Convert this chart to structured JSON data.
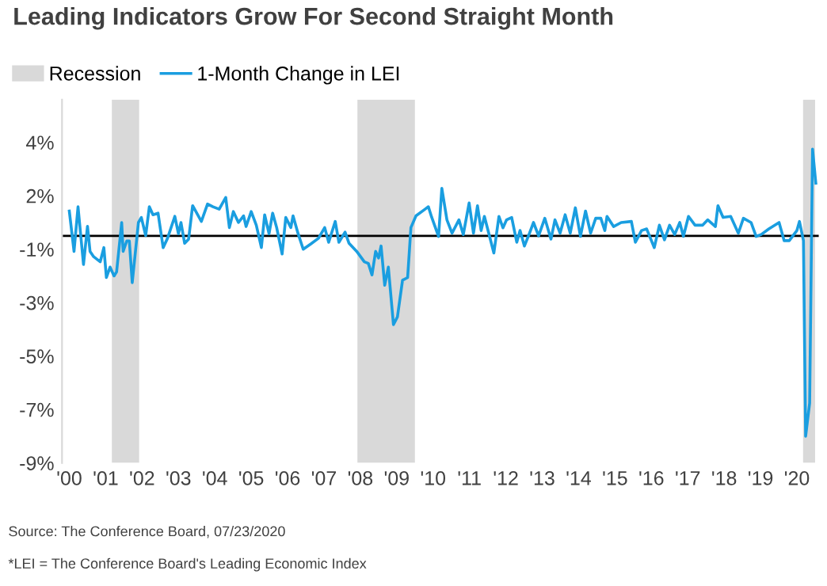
{
  "chart_data": {
    "type": "line",
    "title": "Leading Indicators Grow For Second Straight Month",
    "x": [
      2000.0,
      2000.13,
      2000.24,
      2000.39,
      2000.5,
      2000.57,
      2000.67,
      2000.85,
      2000.95,
      2001.02,
      2001.12,
      2001.23,
      2001.3,
      2001.44,
      2001.48,
      2001.58,
      2001.65,
      2001.73,
      2001.9,
      2001.98,
      2002.1,
      2002.2,
      2002.3,
      2002.44,
      2002.58,
      2002.7,
      2002.9,
      2003.0,
      2003.07,
      2003.17,
      2003.28,
      2003.39,
      2003.63,
      2003.8,
      2003.95,
      2004.12,
      2004.3,
      2004.4,
      2004.51,
      2004.65,
      2004.79,
      2004.86,
      2005.0,
      2005.14,
      2005.28,
      2005.37,
      2005.49,
      2005.59,
      2005.7,
      2005.85,
      2005.95,
      2006.09,
      2006.15,
      2006.29,
      2006.43,
      2006.64,
      2006.85,
      2007.02,
      2007.13,
      2007.31,
      2007.41,
      2007.58,
      2007.69,
      2007.9,
      2008.11,
      2008.22,
      2008.32,
      2008.42,
      2008.5,
      2008.57,
      2008.67,
      2008.77,
      2008.91,
      2009.02,
      2009.16,
      2009.3,
      2009.39,
      2009.53,
      2009.78,
      2009.87,
      2009.96,
      2010.15,
      2010.24,
      2010.38,
      2010.52,
      2010.71,
      2010.83,
      2010.99,
      2011.11,
      2011.22,
      2011.32,
      2011.41,
      2011.53,
      2011.67,
      2011.81,
      2011.92,
      2012.02,
      2012.16,
      2012.3,
      2012.39,
      2012.51,
      2012.65,
      2012.76,
      2012.9,
      2013.07,
      2013.24,
      2013.35,
      2013.49,
      2013.63,
      2013.77,
      2013.91,
      2014.05,
      2014.19,
      2014.33,
      2014.47,
      2014.61,
      2014.72,
      2014.78,
      2014.96,
      2015.17,
      2015.45,
      2015.56,
      2015.73,
      2015.87,
      2016.08,
      2016.22,
      2016.36,
      2016.5,
      2016.64,
      2016.78,
      2016.88,
      2017.02,
      2017.2,
      2017.41,
      2017.55,
      2017.76,
      2017.83,
      2017.97,
      2018.18,
      2018.39,
      2018.53,
      2018.74,
      2018.88,
      2019.02,
      2019.23,
      2019.51,
      2019.65,
      2019.79,
      2020.0,
      2020.07,
      2020.18,
      2020.24,
      2020.35,
      2020.43,
      2020.52
    ],
    "series": [
      {
        "name": "1-Month Change in LEI",
        "color": "#1a9ee0",
        "values": [
          0.93,
          -0.58,
          1.09,
          -1.07,
          0.36,
          -0.58,
          -0.78,
          -0.97,
          -0.44,
          -1.56,
          -1.17,
          -1.5,
          -1.35,
          0.5,
          -0.58,
          -0.19,
          -0.19,
          -1.75,
          0.5,
          0.69,
          0.01,
          1.09,
          0.79,
          0.85,
          -0.44,
          -0.09,
          0.73,
          0.08,
          0.5,
          -0.28,
          -0.12,
          1.13,
          0.54,
          1.19,
          1.09,
          1.0,
          1.44,
          0.31,
          0.91,
          0.5,
          0.75,
          0.35,
          0.91,
          0.4,
          -0.44,
          0.79,
          0.08,
          0.85,
          0.31,
          -0.68,
          0.69,
          0.31,
          0.75,
          0.08,
          -0.5,
          -0.3,
          -0.09,
          0.31,
          -0.24,
          0.54,
          -0.24,
          0.14,
          -0.28,
          -0.58,
          -0.97,
          -1.03,
          -1.46,
          -0.58,
          -0.83,
          -0.38,
          -1.85,
          -1.17,
          -3.32,
          -3.03,
          -1.66,
          -1.56,
          0.31,
          0.75,
          1.0,
          1.09,
          0.7,
          -0.02,
          1.78,
          0.6,
          0.1,
          0.6,
          0.05,
          1.23,
          0.1,
          1.13,
          0.2,
          0.73,
          0.1,
          -0.64,
          0.73,
          0.3,
          0.6,
          0.69,
          -0.24,
          0.2,
          -0.38,
          0.1,
          0.5,
          0.0,
          0.66,
          -0.12,
          0.6,
          0.1,
          0.79,
          0.1,
          1.05,
          -0.02,
          0.93,
          0.1,
          0.66,
          0.66,
          0.2,
          0.73,
          0.35,
          0.5,
          0.54,
          -0.24,
          0.2,
          0.26,
          -0.44,
          0.4,
          -0.15,
          0.4,
          0.05,
          0.5,
          -0.02,
          0.73,
          0.4,
          0.4,
          0.6,
          0.35,
          1.13,
          0.69,
          0.73,
          0.1,
          0.66,
          0.5,
          -0.02,
          0.05,
          0.26,
          0.5,
          -0.18,
          -0.18,
          0.2,
          0.54,
          -0.18,
          -7.5,
          -6.26,
          3.25,
          1.97
        ]
      }
    ],
    "bands": [
      {
        "axis": "x",
        "from": 2001.17,
        "to": 2001.92,
        "label": "Recession",
        "color": "#d9d9d9"
      },
      {
        "axis": "x",
        "from": 2007.92,
        "to": 2009.5,
        "color": "#d9d9d9"
      },
      {
        "axis": "x",
        "from": 2020.17,
        "to": 2020.5,
        "color": "#d9d9d9"
      }
    ],
    "ref_lines": [
      {
        "axis": "y",
        "value": 0,
        "color": "#000000",
        "line_style": "solid"
      }
    ],
    "xlim": [
      1999.8,
      2020.6
    ],
    "ylim": [
      -8.5,
      5.1
    ],
    "xticks": [
      {
        "value": 2000,
        "label": "'00"
      },
      {
        "value": 2001,
        "label": "'01"
      },
      {
        "value": 2002,
        "label": "'02"
      },
      {
        "value": 2003,
        "label": "'03"
      },
      {
        "value": 2004,
        "label": "'04"
      },
      {
        "value": 2005,
        "label": "'05"
      },
      {
        "value": 2006,
        "label": "'06"
      },
      {
        "value": 2007,
        "label": "'07"
      },
      {
        "value": 2008,
        "label": "'08"
      },
      {
        "value": 2009,
        "label": "'09"
      },
      {
        "value": 2010,
        "label": "'10"
      },
      {
        "value": 2011,
        "label": "'11"
      },
      {
        "value": 2012,
        "label": "'12"
      },
      {
        "value": 2013,
        "label": "'13"
      },
      {
        "value": 2014,
        "label": "'14"
      },
      {
        "value": 2015,
        "label": "'15"
      },
      {
        "value": 2016,
        "label": "'16"
      },
      {
        "value": 2017,
        "label": "'17"
      },
      {
        "value": 2018,
        "label": "'18"
      },
      {
        "value": 2019,
        "label": "'19"
      },
      {
        "value": 2020,
        "label": "'20"
      }
    ],
    "yticks": [
      {
        "value": 3.5,
        "label": "4%"
      },
      {
        "value": 1.5,
        "label": "2%"
      },
      {
        "value": -0.5,
        "label": "-1%"
      },
      {
        "value": -2.5,
        "label": "-3%"
      },
      {
        "value": -4.5,
        "label": "-5%"
      },
      {
        "value": -6.5,
        "label": "-7%"
      },
      {
        "value": -8.5,
        "label": "-9%"
      }
    ],
    "grid": false,
    "legend": "top left",
    "marker": "none",
    "line_style": "solid",
    "annotations": [
      "Source: The Conference Board, 07/23/2020",
      "*LEI = The Conference Board's Leading Economic Index"
    ]
  }
}
